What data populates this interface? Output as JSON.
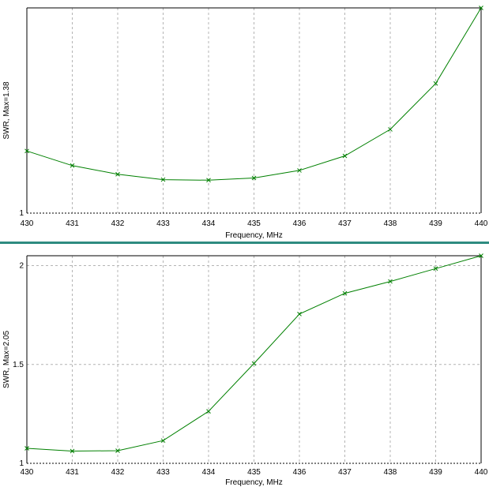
{
  "colors": {
    "background": "#ffffff",
    "plot_border": "#000000",
    "grid": "#b4b4b4",
    "series": "#008000",
    "separator": "#2e8b80"
  },
  "chart_data": [
    {
      "type": "line",
      "title": "",
      "xlabel": "Frequency, MHz",
      "ylabel": "SWR,  Max=1.38",
      "xlim": [
        430,
        440
      ],
      "ylim": [
        1,
        1.38
      ],
      "grid": true,
      "x_ticks": [
        430,
        431,
        432,
        433,
        434,
        435,
        436,
        437,
        438,
        439,
        440
      ],
      "y_ticks": [
        1
      ],
      "series": [
        {
          "x": [
            430,
            431,
            432,
            433,
            434,
            435,
            436,
            437,
            438,
            439,
            440
          ],
          "values": [
            1.115,
            1.088,
            1.072,
            1.062,
            1.061,
            1.065,
            1.079,
            1.106,
            1.155,
            1.24,
            1.38
          ]
        }
      ]
    },
    {
      "type": "line",
      "title": "",
      "xlabel": "Frequency, MHz",
      "ylabel": "SWR,  Max=2.05",
      "xlim": [
        430,
        440
      ],
      "ylim": [
        1,
        2.05
      ],
      "grid": true,
      "x_ticks": [
        430,
        431,
        432,
        433,
        434,
        435,
        436,
        437,
        438,
        439,
        440
      ],
      "y_ticks": [
        1,
        1.5,
        2
      ],
      "y_tick_labels": [
        "1",
        "1.5",
        "2"
      ],
      "series": [
        {
          "x": [
            430,
            431,
            432,
            433,
            434,
            435,
            436,
            437,
            438,
            439,
            440
          ],
          "values": [
            1.076,
            1.062,
            1.064,
            1.115,
            1.263,
            1.505,
            1.755,
            1.86,
            1.92,
            1.985,
            2.05
          ]
        }
      ]
    }
  ]
}
